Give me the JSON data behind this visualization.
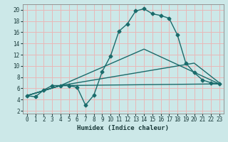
{
  "title": "",
  "xlabel": "Humidex (Indice chaleur)",
  "bg_color": "#cce8e8",
  "grid_color": "#e8b8b8",
  "line_color": "#1a6b6b",
  "xlim": [
    -0.5,
    23.5
  ],
  "ylim": [
    1.5,
    21
  ],
  "xticks": [
    0,
    1,
    2,
    3,
    4,
    5,
    6,
    7,
    8,
    9,
    10,
    11,
    12,
    13,
    14,
    15,
    16,
    17,
    18,
    19,
    20,
    21,
    22,
    23
  ],
  "yticks": [
    2,
    4,
    6,
    8,
    10,
    12,
    14,
    16,
    18,
    20
  ],
  "line1_x": [
    0,
    1,
    2,
    3,
    4,
    5,
    6,
    7,
    8,
    9,
    10,
    11,
    12,
    13,
    14,
    15,
    16,
    17,
    18,
    19,
    20,
    21,
    22,
    23
  ],
  "line1_y": [
    4.7,
    4.5,
    5.7,
    6.5,
    6.5,
    6.5,
    6.2,
    3.0,
    4.8,
    9.0,
    11.8,
    16.2,
    17.5,
    19.8,
    20.2,
    19.3,
    19.0,
    18.5,
    15.5,
    10.5,
    8.8,
    7.5,
    7.0,
    6.8
  ],
  "line2_x": [
    0,
    4,
    14,
    23
  ],
  "line2_y": [
    4.7,
    6.5,
    13.0,
    6.8
  ],
  "line3_x": [
    0,
    4,
    20,
    23
  ],
  "line3_y": [
    4.7,
    6.5,
    10.5,
    7.0
  ],
  "line4_x": [
    0,
    4,
    23
  ],
  "line4_y": [
    4.7,
    6.5,
    6.8
  ],
  "marker": "D",
  "marker_size": 2.5,
  "line_width": 1.0
}
